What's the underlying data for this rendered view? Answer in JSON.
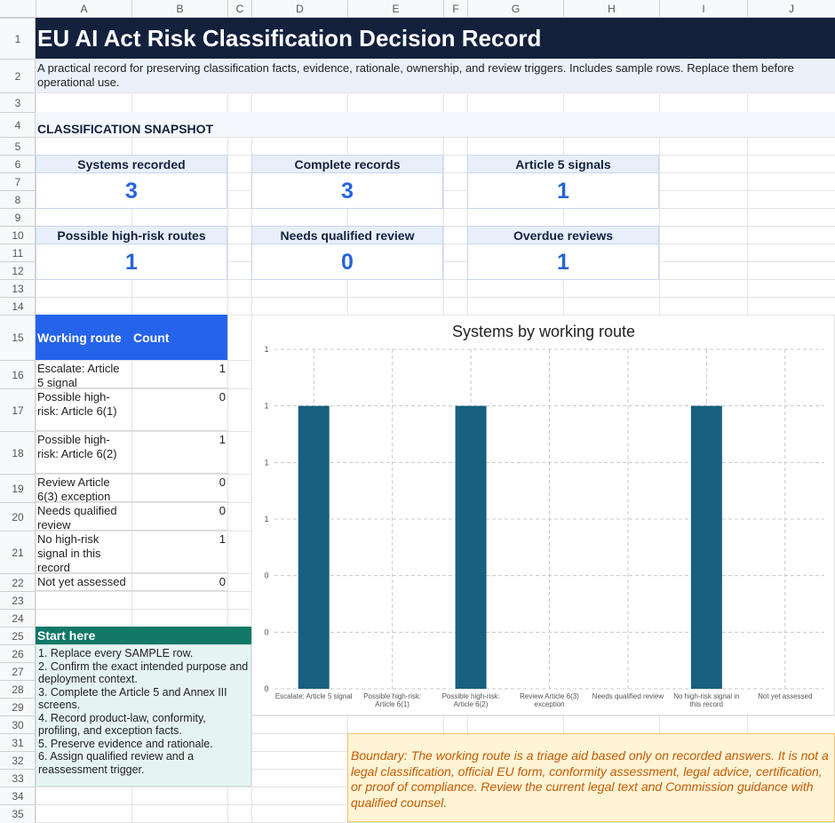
{
  "column_headers": [
    "A",
    "B",
    "C",
    "D",
    "E",
    "F",
    "G",
    "H",
    "I",
    "J"
  ],
  "row_numbers": [
    1,
    2,
    3,
    4,
    5,
    6,
    7,
    8,
    9,
    10,
    11,
    12,
    13,
    14,
    15,
    16,
    17,
    18,
    19,
    20,
    21,
    22,
    23,
    24,
    25,
    26,
    27,
    28,
    29,
    30,
    31,
    32,
    33,
    34,
    35
  ],
  "title": "EU AI Act Risk Classification Decision Record",
  "subtitle": "A practical record for preserving classification facts, evidence, rationale, ownership, and review triggers. Includes sample rows. Replace them before operational use.",
  "snapshot": {
    "heading": "CLASSIFICATION SNAPSHOT",
    "cards": [
      {
        "label": "Systems recorded",
        "value": 3
      },
      {
        "label": "Complete records",
        "value": 3
      },
      {
        "label": "Article 5 signals",
        "value": 1
      },
      {
        "label": "Possible high-risk routes",
        "value": 1
      },
      {
        "label": "Needs qualified review",
        "value": 0
      },
      {
        "label": "Overdue reviews",
        "value": 1
      }
    ]
  },
  "route_table": {
    "headers": [
      "Working route",
      "Count"
    ],
    "rows": [
      [
        "Escalate: Article 5 signal",
        1
      ],
      [
        "Possible high-risk: Article 6(1)",
        0
      ],
      [
        "Possible high-risk: Article 6(2)",
        1
      ],
      [
        "Review Article 6(3) exception",
        0
      ],
      [
        "Needs qualified review",
        0
      ],
      [
        "No high-risk signal in this record",
        1
      ],
      [
        "Not yet assessed",
        0
      ]
    ]
  },
  "start_here": {
    "heading": "Start here",
    "steps": [
      "1. Replace every SAMPLE row.",
      "2. Confirm the exact intended purpose and deployment context.",
      "3. Complete the Article 5 and Annex III screens.",
      "4. Record product-law, conformity, profiling, and exception facts.",
      "5. Preserve evidence and rationale.",
      "6. Assign qualified review and a reassessment trigger."
    ]
  },
  "boundary": "Boundary: The working route is a triage aid based only on recorded answers. It is not a legal classification, official EU form, conformity assessment, legal advice, certification, or proof of compliance. Review the current legal text and Commission guidance with qualified counsel.",
  "chart_data": {
    "type": "bar",
    "title": "Systems by working route",
    "categories": [
      "Escalate: Article 5 signal",
      "Possible high-risk: Article 6(1)",
      "Possible high-risk: Article 6(2)",
      "Review Article 6(3) exception",
      "Needs qualified review",
      "No high-risk signal in this record",
      "Not yet assessed"
    ],
    "values": [
      1,
      0,
      1,
      0,
      0,
      1,
      0
    ],
    "color": "#17607f",
    "ylim": [
      0,
      1.2
    ],
    "yticks": [
      0,
      {
        "value": 0.2,
        "label": "0"
      },
      {
        "value": 0.4,
        "label": "0"
      },
      {
        "value": 0.6,
        "label": "1"
      },
      {
        "value": 0.8,
        "label": "1"
      },
      {
        "value": 1.0,
        "label": "1"
      },
      {
        "value": 1.2,
        "label": "1"
      }
    ],
    "grid": true
  }
}
